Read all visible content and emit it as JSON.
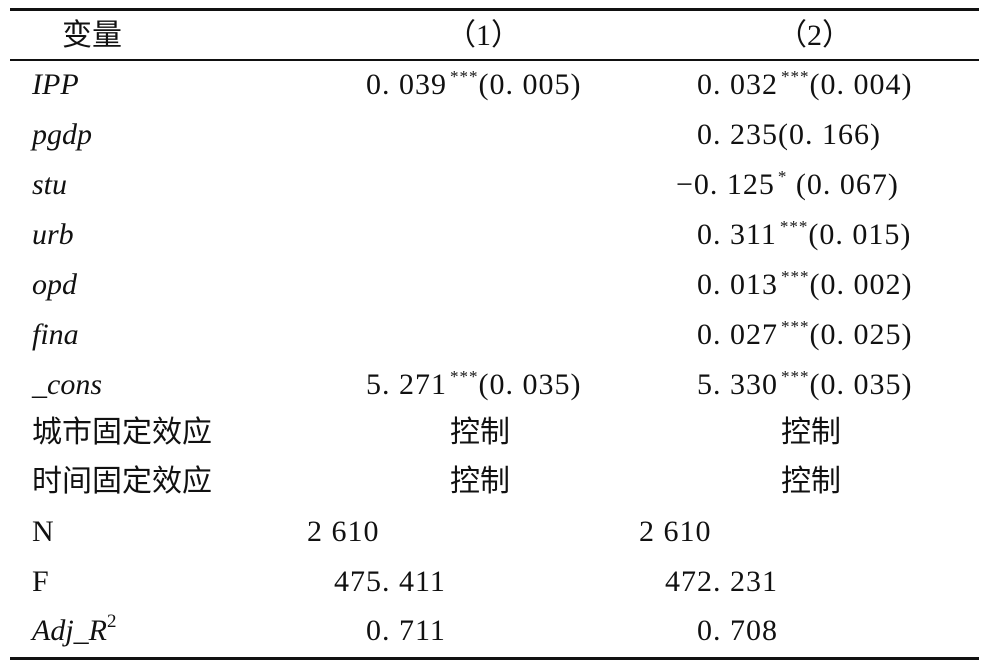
{
  "header": {
    "var": "变量",
    "col1": "（1）",
    "col2": "（2）"
  },
  "rows": [
    {
      "var": "IPP",
      "c1": {
        "coef": "0. 039",
        "star": "***",
        "se": "(0. 005)"
      },
      "c2": {
        "coef": "0. 032",
        "star": "***",
        "se": "(0. 004)"
      }
    },
    {
      "var": "pgdp",
      "c2": {
        "coef": "0. 235",
        "star": "",
        "se": "(0. 166)"
      }
    },
    {
      "var": "stu",
      "c2": {
        "coef": "−0. 125",
        "star": "*",
        "se": " (0. 067)"
      }
    },
    {
      "var": "urb",
      "c2": {
        "coef": "0. 311",
        "star": "***",
        "se": "(0. 015)"
      }
    },
    {
      "var": "opd",
      "c2": {
        "coef": "0. 013",
        "star": "***",
        "se": "(0. 002)"
      }
    },
    {
      "var": "fina",
      "c2": {
        "coef": "0. 027",
        "star": "***",
        "se": "(0. 025)"
      }
    },
    {
      "var": "_cons",
      "c1": {
        "coef": "5. 271",
        "star": "***",
        "se": "(0. 035)"
      },
      "c2": {
        "coef": "5. 330",
        "star": "***",
        "se": "(0. 035)"
      }
    }
  ],
  "controls": [
    {
      "label": "城市固定效应",
      "c1": "控制",
      "c2": "控制"
    },
    {
      "label": "时间固定效应",
      "c1": "控制",
      "c2": "控制"
    }
  ],
  "stats": [
    {
      "label": "N",
      "c1": "2 610",
      "c2": "2 610"
    },
    {
      "label": "F",
      "c1": "475. 411",
      "c2": "472. 231"
    },
    {
      "label": "Adj_R",
      "sup": "2",
      "c1": "0. 711",
      "c2": "0. 708"
    }
  ]
}
